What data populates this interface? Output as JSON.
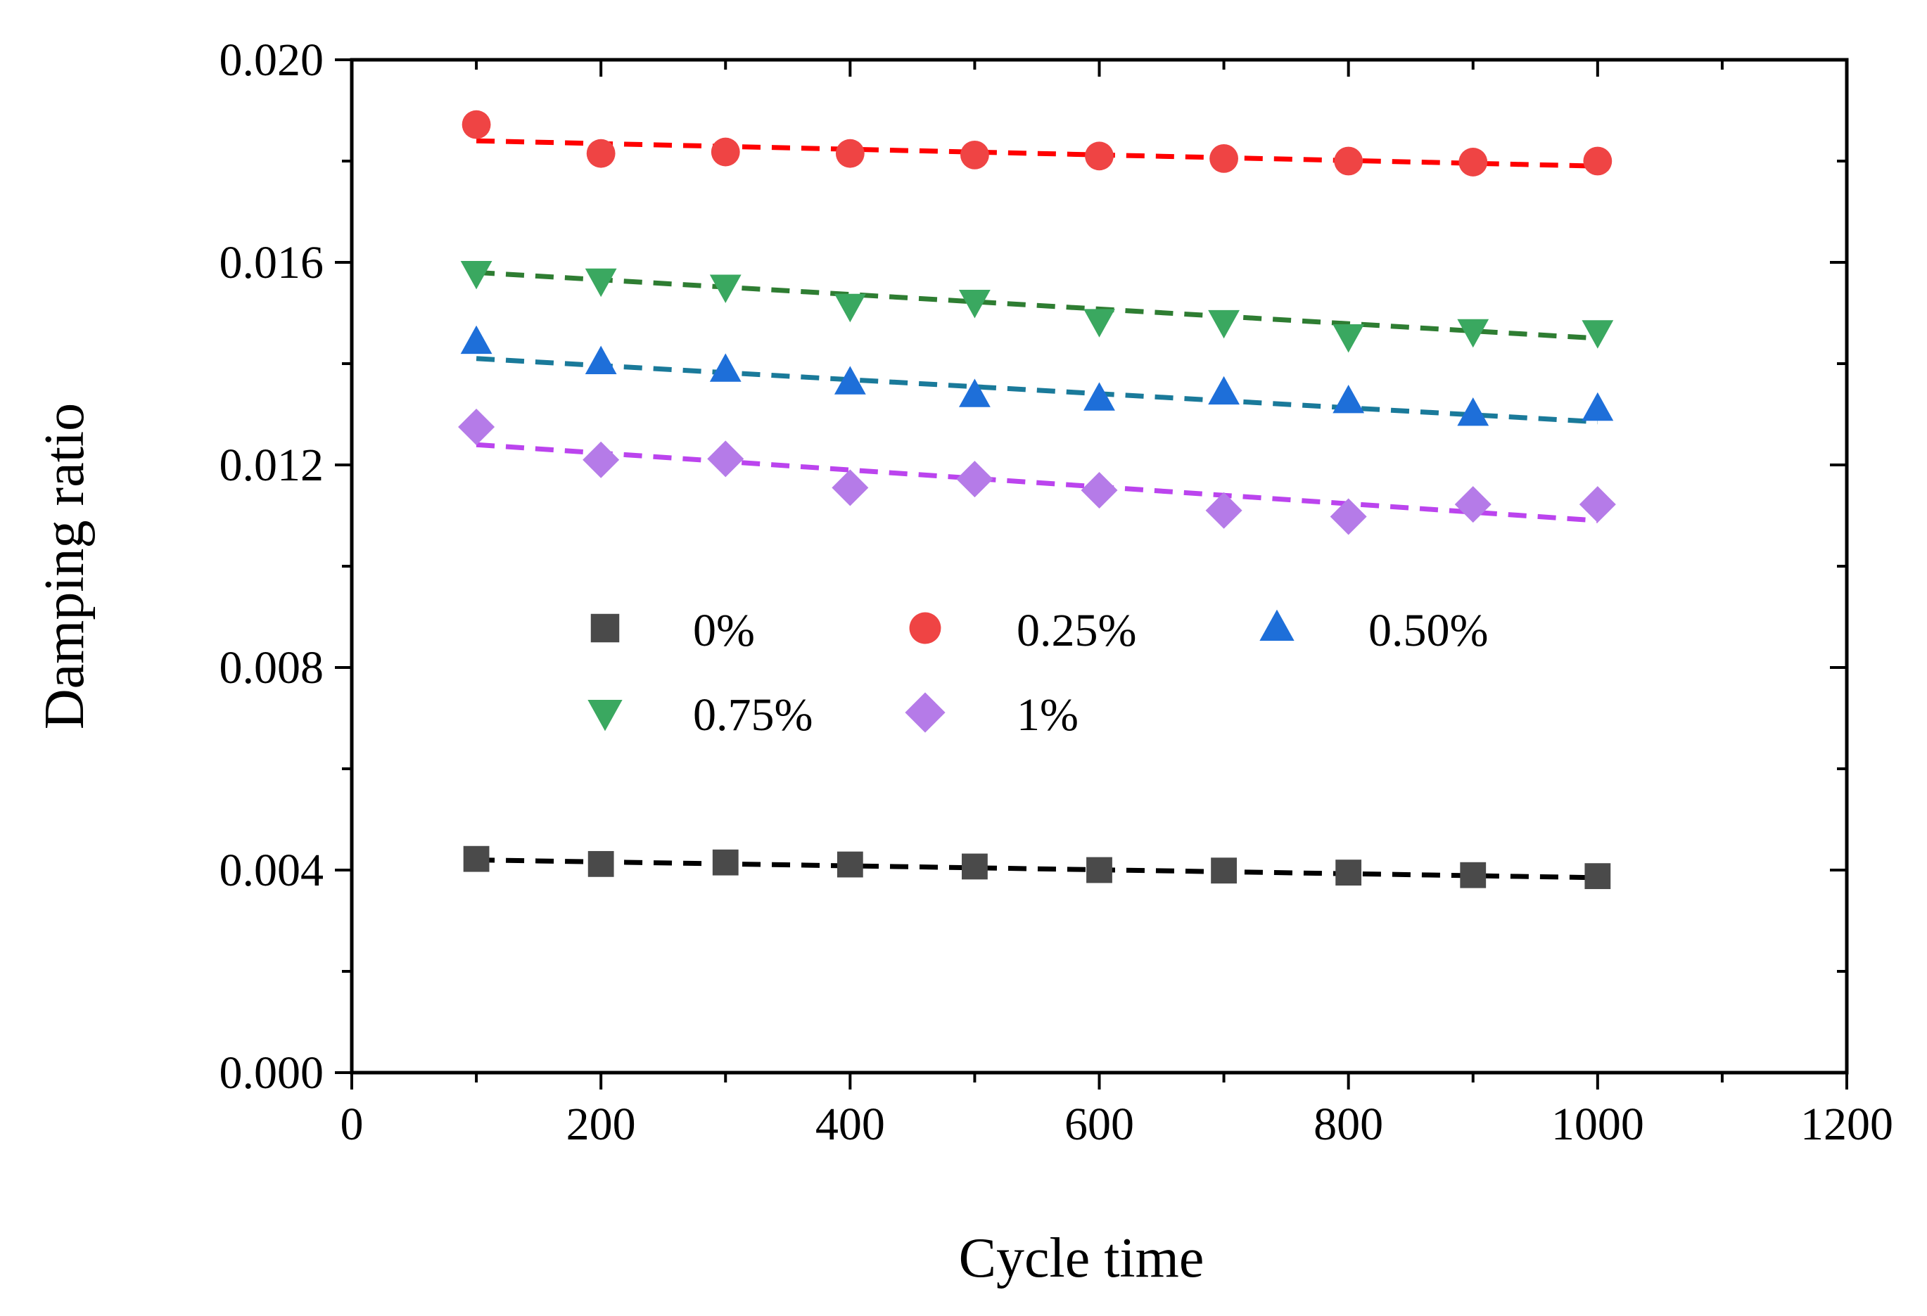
{
  "chart_data": {
    "type": "scatter",
    "title": "",
    "xlabel": "Cycle time",
    "ylabel": "Damping ratio",
    "xlim": [
      0,
      1200
    ],
    "ylim": [
      0.0,
      0.02
    ],
    "x_ticks": [
      0,
      200,
      400,
      600,
      800,
      1000,
      1200
    ],
    "x_tick_labels": [
      "0",
      "200",
      "400",
      "600",
      "800",
      "1000",
      "1200"
    ],
    "y_ticks": [
      0.0,
      0.004,
      0.008,
      0.012,
      0.016,
      0.02
    ],
    "y_tick_labels": [
      "0.000",
      "0.004",
      "0.008",
      "0.012",
      "0.016",
      "0.020"
    ],
    "grid": false,
    "legend_position": "center",
    "x": [
      100,
      200,
      300,
      400,
      500,
      600,
      700,
      800,
      900,
      1000
    ],
    "series": [
      {
        "name": "0%",
        "marker": "square",
        "color": "#4a4a4a",
        "fit_color": "#000000",
        "values": [
          0.00422,
          0.00412,
          0.00415,
          0.00411,
          0.00407,
          0.004,
          0.00399,
          0.00395,
          0.0039,
          0.00388
        ],
        "fit": [
          0.0042,
          0.00385
        ]
      },
      {
        "name": "0.25%",
        "marker": "circle",
        "color": "#ef4444",
        "fit_color": "#ff0000",
        "values": [
          0.01872,
          0.01815,
          0.01818,
          0.01815,
          0.01812,
          0.0181,
          0.01805,
          0.018,
          0.01798,
          0.018
        ],
        "fit": [
          0.0184,
          0.0179
        ]
      },
      {
        "name": "0.50%",
        "marker": "triangle-up",
        "color": "#1e6fd9",
        "fit_color": "#1a7a9a",
        "values": [
          0.01442,
          0.01402,
          0.01387,
          0.01362,
          0.01337,
          0.0133,
          0.01342,
          0.01325,
          0.013,
          0.0131
        ],
        "fit": [
          0.0141,
          0.01285
        ]
      },
      {
        "name": "0.75%",
        "marker": "triangle-down",
        "color": "#3aa860",
        "fit_color": "#2e7d32",
        "values": [
          0.0158,
          0.01565,
          0.01553,
          0.01515,
          0.01523,
          0.01485,
          0.01483,
          0.01455,
          0.01465,
          0.01463
        ],
        "fit": [
          0.0158,
          0.0145
        ]
      },
      {
        "name": "1%",
        "marker": "diamond",
        "color": "#b57be8",
        "fit_color": "#bb44ee",
        "values": [
          0.01275,
          0.0121,
          0.01212,
          0.01155,
          0.01172,
          0.0115,
          0.0111,
          0.01098,
          0.01122,
          0.01122
        ],
        "fit": [
          0.0124,
          0.0109
        ]
      }
    ]
  }
}
